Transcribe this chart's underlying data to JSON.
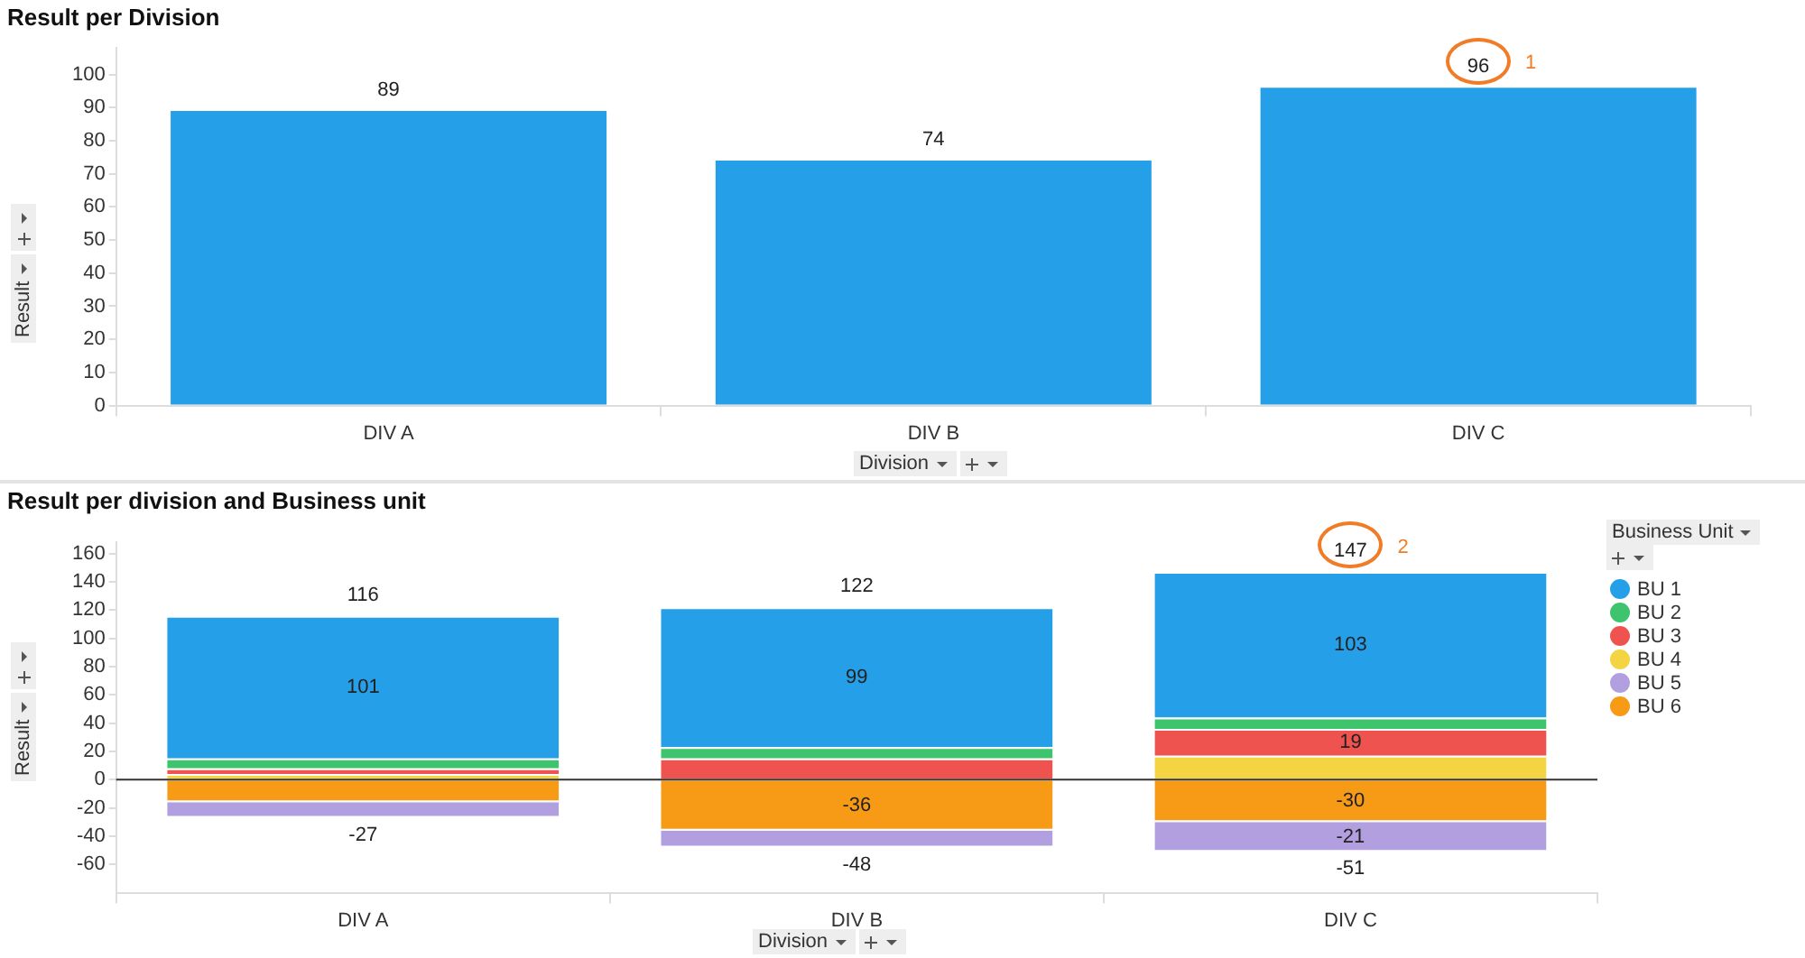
{
  "chart_data": [
    {
      "type": "bar",
      "title": "Result per Division",
      "xlabel": "Division",
      "ylabel": "Result",
      "categories": [
        "DIV A",
        "DIV B",
        "DIV C"
      ],
      "values": [
        89,
        74,
        96
      ],
      "color": "#269fe9",
      "ylim": [
        0,
        108
      ],
      "yticks": [
        0,
        10,
        20,
        30,
        40,
        50,
        60,
        70,
        80,
        90,
        100
      ],
      "data_labels": true,
      "annotations": [
        {
          "text": "1",
          "x": "DIV C",
          "y": 96
        }
      ]
    },
    {
      "type": "bar",
      "title": "Result per division and Business unit",
      "xlabel": "Division",
      "ylabel": "Result",
      "legend_title": "Business Unit",
      "legend": "right",
      "stacked": true,
      "categories": [
        "DIV A",
        "DIV B",
        "DIV C"
      ],
      "series": [
        {
          "name": "BU 6",
          "color": "#f79a16",
          "values": [
            -16,
            -36,
            -30
          ],
          "value_labels": [
            null,
            "-36",
            "-30"
          ]
        },
        {
          "name": "BU 5",
          "color": "#b19fe0",
          "values": [
            -11,
            -12,
            -21
          ],
          "value_labels": [
            null,
            null,
            "-21"
          ]
        },
        {
          "name": "BU 4",
          "color": "#f4d442",
          "values": [
            4,
            0,
            17
          ]
        },
        {
          "name": "BU 3",
          "color": "#ef5350",
          "values": [
            4,
            15,
            19
          ],
          "value_labels": [
            null,
            null,
            "19"
          ]
        },
        {
          "name": "BU 2",
          "color": "#3ec46d",
          "values": [
            7,
            8,
            8
          ]
        },
        {
          "name": "BU 1",
          "color": "#269fe9",
          "values": [
            101,
            99,
            103
          ],
          "value_labels": [
            "101",
            "99",
            "103"
          ]
        }
      ],
      "ylim": [
        -80,
        168
      ],
      "yticks": [
        -60,
        -40,
        -20,
        0,
        20,
        40,
        60,
        80,
        100,
        120,
        140,
        160
      ],
      "ref_lines": [
        {
          "axis": "y",
          "value": 0,
          "color": "#333333"
        }
      ],
      "annotations": [
        {
          "text": "116",
          "x": "DIV A",
          "y": 116
        },
        {
          "text": "122",
          "x": "DIV B",
          "y": 122
        },
        {
          "text": "147",
          "x": "DIV C",
          "y": 147
        },
        {
          "text": "-27",
          "x": "DIV A",
          "y": -27
        },
        {
          "text": "-48",
          "x": "DIV B",
          "y": -48
        },
        {
          "text": "-51",
          "x": "DIV C",
          "y": -51
        },
        {
          "text": "2",
          "x": "DIV C",
          "y": 147
        }
      ]
    }
  ]
}
